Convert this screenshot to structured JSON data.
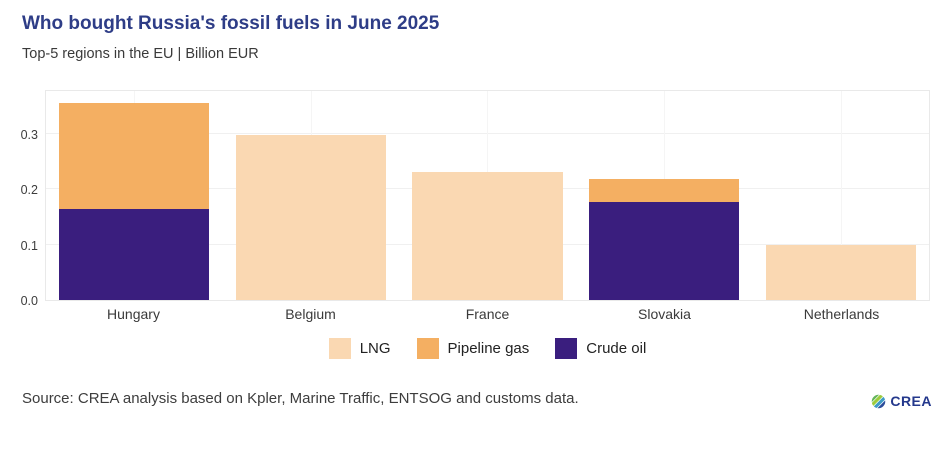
{
  "header": {
    "title": "Who bought Russia's fossil fuels in June 2025",
    "subtitle": "Top-5 regions in the EU | Billion EUR"
  },
  "colors": {
    "title": "#2E3D87",
    "text": "#3A3A3A",
    "grid_horizontal": "#F0F0F0",
    "grid_vertical": "#F5F5F5",
    "plot_border": "#E9E9E9",
    "lng": "#FAD8B2",
    "pipeline_gas": "#F4AF62",
    "crude_oil": "#3A1E7E",
    "logo_navy": "#24388C"
  },
  "chart_data": {
    "type": "bar",
    "stacked": true,
    "title": "Who bought Russia's fossil fuels in June 2025",
    "subtitle": "Top-5 regions in the EU | Billion EUR",
    "unit": "Billion EUR",
    "categories": [
      "Hungary",
      "Belgium",
      "France",
      "Slovakia",
      "Netherlands"
    ],
    "series": [
      {
        "name": "LNG",
        "color": "#FAD8B2",
        "values": [
          0,
          0.298,
          0.232,
          0,
          0.1
        ]
      },
      {
        "name": "Pipeline gas",
        "color": "#F4AF62",
        "values": [
          0.191,
          0,
          0,
          0.042,
          0
        ]
      },
      {
        "name": "Crude oil",
        "color": "#3A1E7E",
        "values": [
          0.165,
          0,
          0,
          0.177,
          0
        ]
      }
    ],
    "stack_order_bottom_to_top": [
      "Crude oil",
      "Pipeline gas",
      "LNG"
    ],
    "totals": [
      0.356,
      0.298,
      0.232,
      0.219,
      0.1
    ],
    "xlabel": "",
    "ylabel": "",
    "yticks": [
      0.0,
      0.1,
      0.2,
      0.3
    ],
    "ylim": [
      0,
      0.3775
    ],
    "grid": true,
    "legend_position": "bottom"
  },
  "footer": {
    "source": "Source: CREA analysis based on Kpler, Marine Traffic, ENTSOG and customs data.",
    "logo_text": "CREA"
  }
}
